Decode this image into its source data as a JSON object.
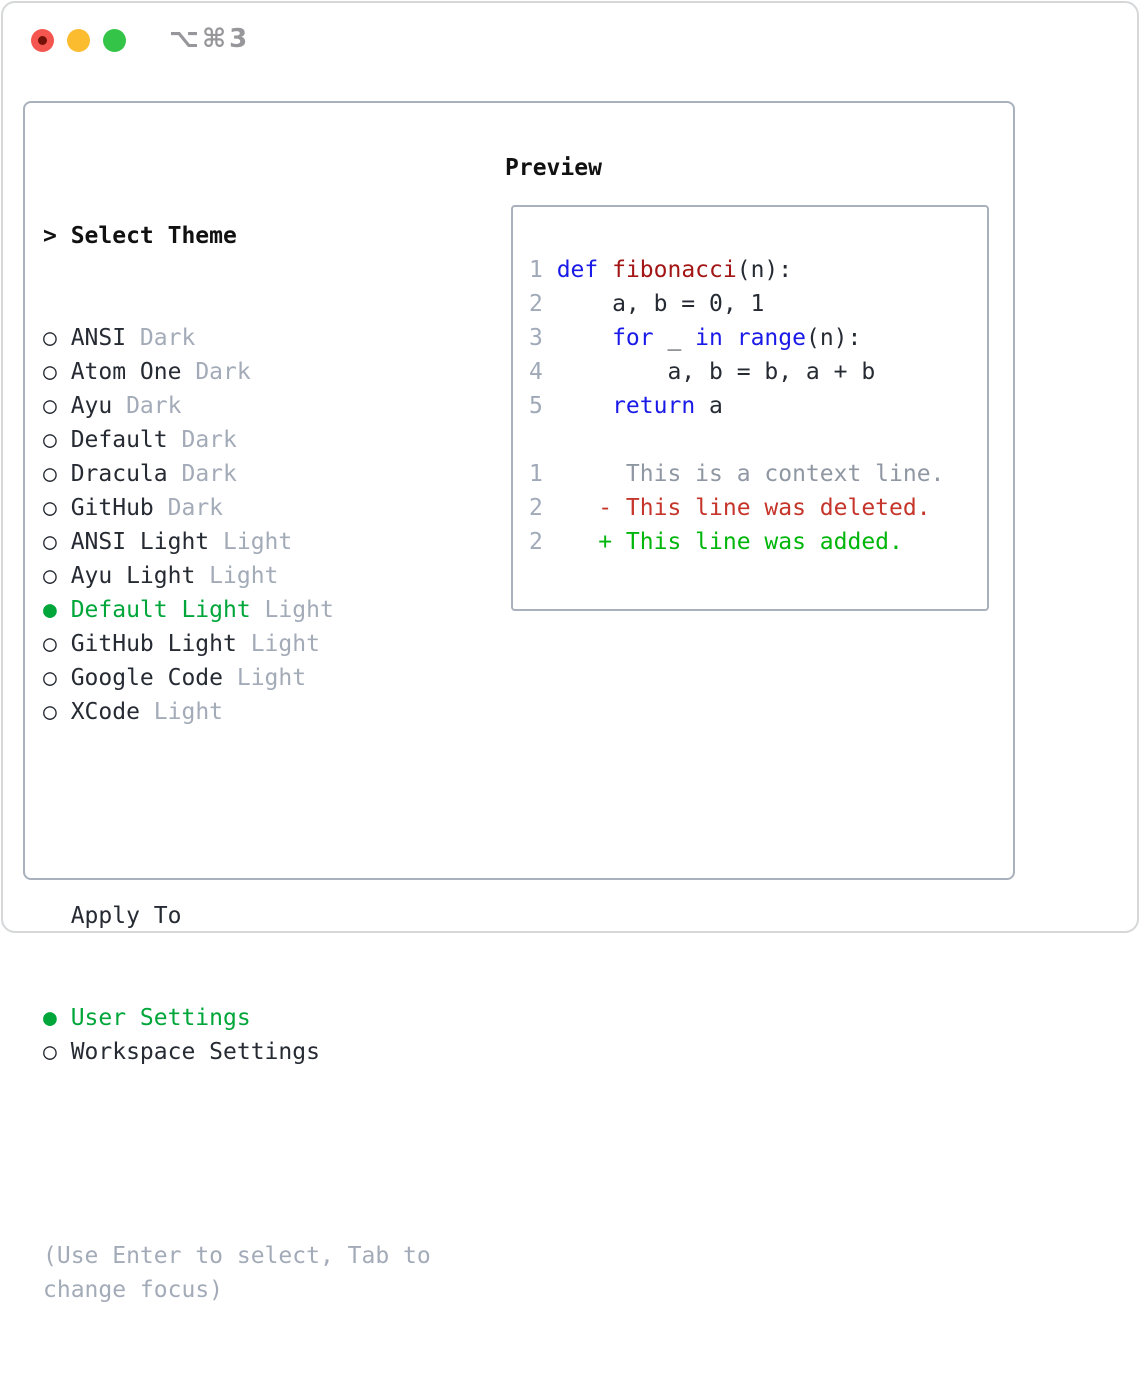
{
  "window": {
    "title": "⌥⌘3"
  },
  "traffic_lights": {
    "close_color": "#f4564f",
    "close_dot_color": "#731008",
    "minimize_color": "#fbbc30",
    "zoom_color": "#33c448"
  },
  "theme_select": {
    "heading": "Select Theme",
    "heading_marker": ">",
    "selected_marker": "●",
    "unselected_marker": "○",
    "items": [
      {
        "name": "ANSI",
        "variant": "Dark",
        "selected": false
      },
      {
        "name": "Atom One",
        "variant": "Dark",
        "selected": false
      },
      {
        "name": "Ayu",
        "variant": "Dark",
        "selected": false
      },
      {
        "name": "Default",
        "variant": "Dark",
        "selected": false
      },
      {
        "name": "Dracula",
        "variant": "Dark",
        "selected": false
      },
      {
        "name": "GitHub",
        "variant": "Dark",
        "selected": false
      },
      {
        "name": "ANSI Light",
        "variant": "Light",
        "selected": false
      },
      {
        "name": "Ayu Light",
        "variant": "Light",
        "selected": false
      },
      {
        "name": "Default Light",
        "variant": "Light",
        "selected": true
      },
      {
        "name": "GitHub Light",
        "variant": "Light",
        "selected": false
      },
      {
        "name": "Google Code",
        "variant": "Light",
        "selected": false
      },
      {
        "name": "XCode",
        "variant": "Light",
        "selected": false
      }
    ]
  },
  "apply_to": {
    "heading": "Apply To",
    "options": [
      {
        "label": "User Settings",
        "selected": true
      },
      {
        "label": "Workspace Settings",
        "selected": false
      }
    ]
  },
  "hint": "(Use Enter to select, Tab to change focus)",
  "preview": {
    "heading": "Preview",
    "lines": [
      {
        "no": "1",
        "segs": [
          [
            "k",
            "def"
          ],
          [
            "p",
            " "
          ],
          [
            "f",
            "fibonacci"
          ],
          [
            "p",
            "(n):"
          ]
        ]
      },
      {
        "no": "2",
        "segs": [
          [
            "p",
            "    a, b = 0, 1"
          ]
        ]
      },
      {
        "no": "3",
        "segs": [
          [
            "p",
            "    "
          ],
          [
            "k",
            "for"
          ],
          [
            "p",
            " _ "
          ],
          [
            "k",
            "in"
          ],
          [
            "p",
            " "
          ],
          [
            "k",
            "range"
          ],
          [
            "p",
            "(n):"
          ]
        ]
      },
      {
        "no": "4",
        "segs": [
          [
            "p",
            "        a, b = b, a + b"
          ]
        ]
      },
      {
        "no": "5",
        "segs": [
          [
            "p",
            "    "
          ],
          [
            "k",
            "return"
          ],
          [
            "p",
            " a"
          ]
        ]
      },
      {
        "no": "",
        "segs": []
      },
      {
        "no": "1",
        "segs": [
          [
            "ctx",
            "     This is a context line."
          ]
        ]
      },
      {
        "no": "2",
        "segs": [
          [
            "del",
            "   - This line was deleted."
          ]
        ]
      },
      {
        "no": "2",
        "segs": [
          [
            "add",
            "   + This line was added."
          ]
        ]
      }
    ]
  },
  "colors": {
    "selected_green": "#00a63a",
    "added_green": "#00b60b",
    "deleted_red": "#c5352b",
    "keyword_blue": "#1a1ae8",
    "function_red": "#a31515",
    "muted_gray": "#a3abb8",
    "line_number_gray": "#a0a9b8",
    "context_gray": "#8f97a3",
    "text_dark": "#262b33",
    "border_gray": "#a9b1bc"
  }
}
